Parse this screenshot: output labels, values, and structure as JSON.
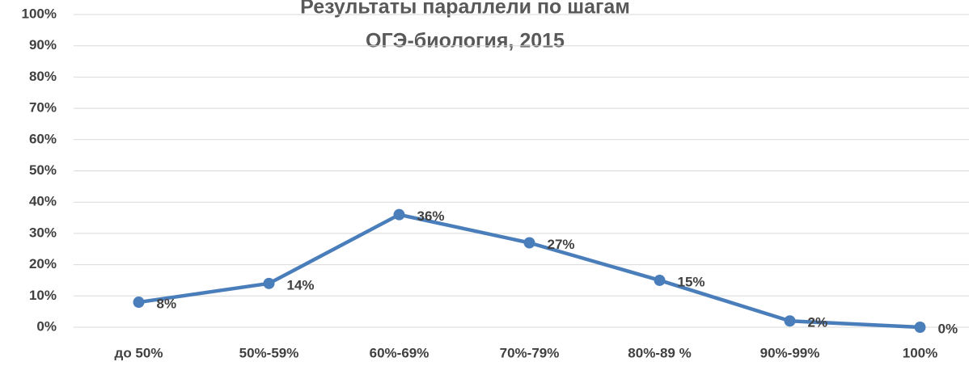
{
  "chart_data": {
    "type": "line",
    "title": "Результаты параллели по шагам",
    "subtitle": "ОГЭ-биология, 2015",
    "categories": [
      "до 50%",
      "50%-59%",
      "60%-69%",
      "70%-79%",
      "80%-89 %",
      "90%-99%",
      "100%"
    ],
    "values": [
      8,
      14,
      36,
      27,
      15,
      2,
      0
    ],
    "value_labels": [
      "8%",
      "14%",
      "36%",
      "27%",
      "15%",
      "2%",
      "0%"
    ],
    "color": "#4a7ebb",
    "ylim": [
      0,
      100
    ],
    "yticks": [
      {
        "value": 0,
        "label": "0%"
      },
      {
        "value": 10,
        "label": "10%"
      },
      {
        "value": 20,
        "label": "20%"
      },
      {
        "value": 30,
        "label": "30%"
      },
      {
        "value": 40,
        "label": "40%"
      },
      {
        "value": 50,
        "label": "50%"
      },
      {
        "value": 60,
        "label": "60%"
      },
      {
        "value": 70,
        "label": "70%"
      },
      {
        "value": 80,
        "label": "80%"
      },
      {
        "value": 90,
        "label": "90%"
      },
      {
        "value": 100,
        "label": "100%"
      }
    ],
    "grid": true
  }
}
